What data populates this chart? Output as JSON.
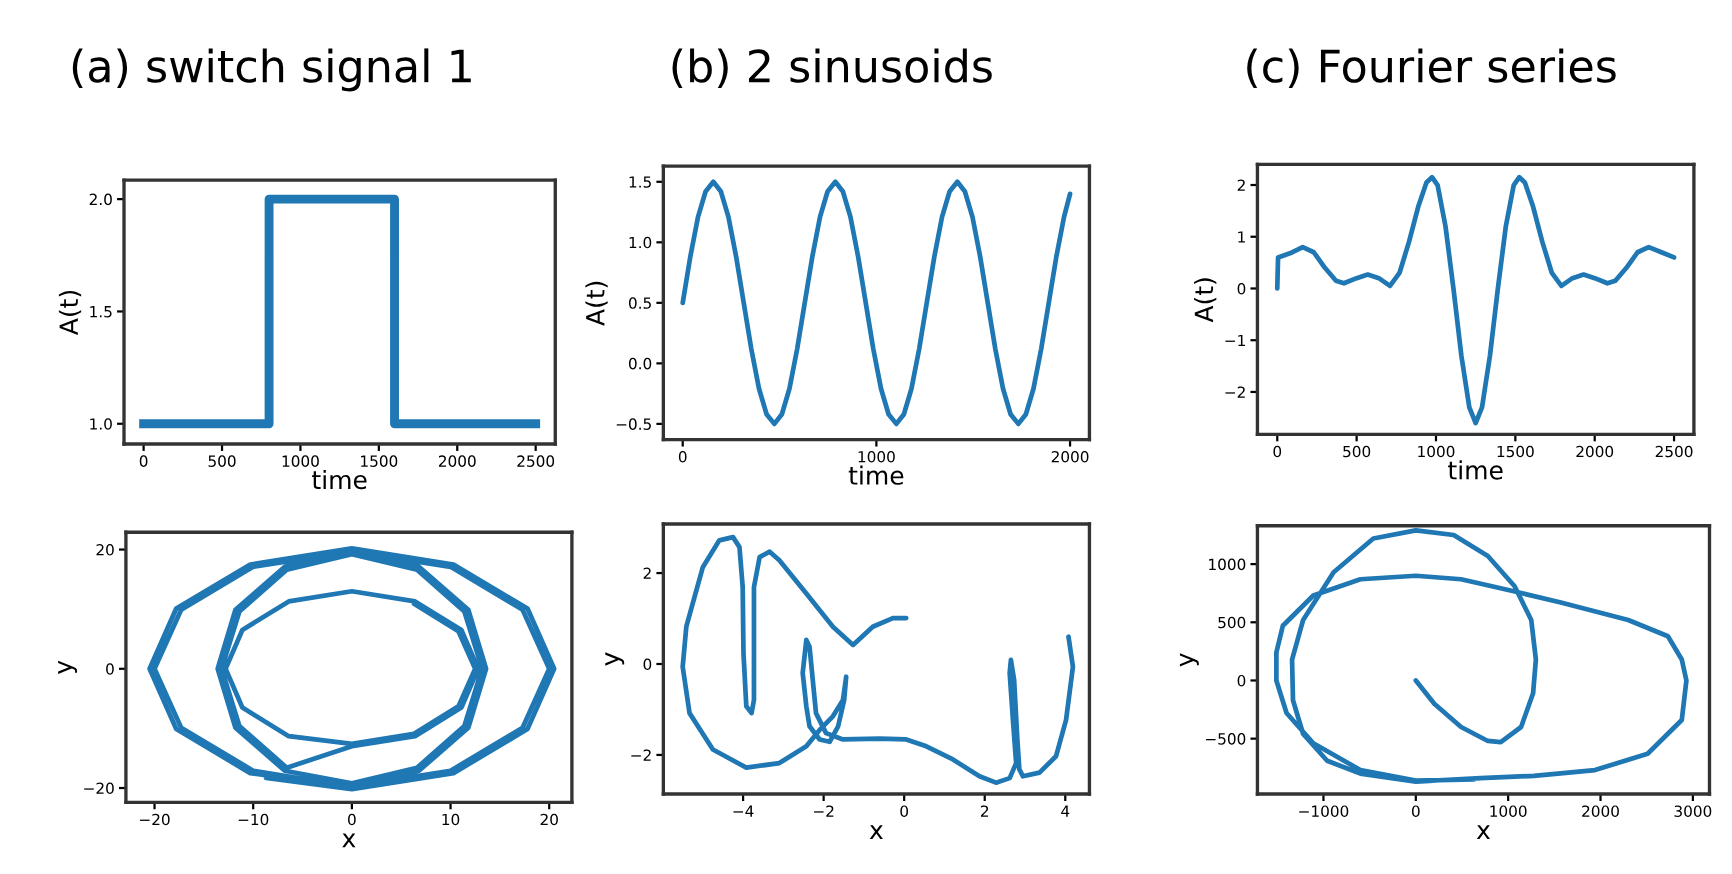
{
  "chart_data": [
    {
      "type": "step",
      "title": "(a) switch signal 1",
      "xlabel": "time",
      "ylabel": "A(t)",
      "xlim": [
        -125,
        2625
      ],
      "ylim": [
        0.91,
        2.085
      ],
      "xticks": [
        0,
        500,
        1000,
        1500,
        2000,
        2500
      ],
      "yticks": [
        {
          "value": 1.0,
          "label": "1.0"
        },
        {
          "value": 1.5,
          "label": "1.5"
        },
        {
          "value": 2.0,
          "label": "2.0"
        }
      ],
      "series": [
        {
          "color": "#1f77b4",
          "x": [
            0,
            800,
            1600,
            2500
          ],
          "values": [
            1.0,
            2.0,
            1.0,
            1.0
          ]
        }
      ]
    },
    {
      "type": "line",
      "title": "(b) 2 sinusoids",
      "xlabel": "time",
      "ylabel": "A(t)",
      "xlim": [
        -100,
        2100
      ],
      "ylim": [
        -0.63,
        1.63
      ],
      "xticks": [
        0,
        1000,
        2000
      ],
      "yticks": [
        {
          "value": -0.5,
          "label": "−0.5"
        },
        {
          "value": 0.0,
          "label": "0.0"
        },
        {
          "value": 0.5,
          "label": "0.5"
        },
        {
          "value": 1.0,
          "label": "1.0"
        },
        {
          "value": 1.5,
          "label": "1.5"
        }
      ],
      "series": [
        {
          "color": "#1f77b4",
          "x": [
            0,
            39,
            79,
            118,
            158,
            197,
            236,
            276,
            315,
            354,
            394,
            433,
            473,
            512,
            551,
            591,
            630,
            669,
            709,
            748,
            788,
            827,
            866,
            906,
            945,
            984,
            1024,
            1063,
            1103,
            1142,
            1181,
            1221,
            1260,
            1299,
            1339,
            1378,
            1418,
            1457,
            1496,
            1536,
            1575,
            1614,
            1654,
            1693,
            1733,
            1772,
            1811,
            1851,
            1890,
            1929,
            1969,
            2000
          ],
          "values": [
            0.5,
            0.88,
            1.21,
            1.42,
            1.5,
            1.42,
            1.21,
            0.88,
            0.5,
            0.12,
            -0.21,
            -0.42,
            -0.5,
            -0.42,
            -0.21,
            0.12,
            0.5,
            0.88,
            1.21,
            1.42,
            1.5,
            1.42,
            1.21,
            0.88,
            0.5,
            0.12,
            -0.21,
            -0.42,
            -0.5,
            -0.42,
            -0.21,
            0.12,
            0.5,
            0.88,
            1.21,
            1.42,
            1.5,
            1.42,
            1.21,
            0.88,
            0.5,
            0.12,
            -0.21,
            -0.42,
            -0.5,
            -0.42,
            -0.21,
            0.12,
            0.5,
            0.88,
            1.21,
            1.4
          ]
        }
      ]
    },
    {
      "type": "line",
      "title": "(c) Fourier series",
      "xlabel": "time",
      "ylabel": "A(t)",
      "xlim": [
        -125,
        2625
      ],
      "ylim": [
        -2.82,
        2.4
      ],
      "xticks": [
        0,
        500,
        1000,
        1500,
        2000,
        2500
      ],
      "yticks": [
        {
          "value": -2,
          "label": "−2"
        },
        {
          "value": -1,
          "label": "−1"
        },
        0,
        1,
        2
      ],
      "series": [
        {
          "color": "#1f77b4",
          "x": [
            0,
            5,
            80,
            160,
            230,
            300,
            370,
            420,
            500,
            570,
            640,
            710,
            770,
            830,
            890,
            940,
            975,
            1010,
            1060,
            1110,
            1160,
            1210,
            1250,
            1290,
            1340,
            1390,
            1440,
            1490,
            1525,
            1560,
            1610,
            1670,
            1730,
            1790,
            1860,
            1930,
            2000,
            2080,
            2130,
            2200,
            2270,
            2340,
            2420,
            2500
          ],
          "values": [
            0.0,
            0.6,
            0.68,
            0.8,
            0.7,
            0.4,
            0.15,
            0.1,
            0.2,
            0.27,
            0.2,
            0.05,
            0.3,
            0.9,
            1.6,
            2.05,
            2.15,
            2.0,
            1.2,
            0.0,
            -1.3,
            -2.3,
            -2.6,
            -2.3,
            -1.3,
            0.0,
            1.2,
            2.0,
            2.15,
            2.05,
            1.6,
            0.9,
            0.3,
            0.05,
            0.2,
            0.27,
            0.2,
            0.1,
            0.15,
            0.4,
            0.7,
            0.8,
            0.7,
            0.6
          ]
        }
      ]
    },
    {
      "type": "line",
      "xlabel": "x",
      "ylabel": "y",
      "xlim": [
        -22.9,
        22.3
      ],
      "ylim": [
        -22.4,
        22.9
      ],
      "xticks": [
        {
          "value": -20,
          "label": "−20"
        },
        {
          "value": -10,
          "label": "−10"
        },
        0,
        10,
        20
      ],
      "yticks": [
        {
          "value": -20,
          "label": "−20"
        },
        0,
        20
      ],
      "series": [
        {
          "color": "#1f77b4",
          "x": [
            -8.7,
            0,
            10.3,
            17.8,
            20.5,
            17.8,
            10.3,
            0,
            -10.3,
            -17.8,
            -20.5,
            -17.8,
            -10.3,
            0,
            10,
            17.3,
            20,
            17.3,
            10,
            0,
            -10,
            -17.3,
            -20,
            -17.3,
            -10,
            0,
            6.8,
            11.8,
            13.6,
            11.8,
            6.8,
            0,
            -6.8,
            -11.8,
            -13.6,
            -11.8,
            -6.8,
            0,
            6.6,
            11.4,
            13.2,
            11.4,
            6.6,
            0,
            -6.6,
            -11.4,
            -13.2,
            -11.4,
            -6.6,
            0,
            6.4,
            11.1,
            12.8,
            11.1,
            6.4,
            0,
            -6.4,
            -11.1,
            -12.8,
            -11.1,
            -6.4,
            0,
            6.3,
            10.8,
            12.5,
            10.8,
            6.3
          ],
          "values": [
            -18.3,
            -20.2,
            -17.5,
            -10.1,
            0,
            10.1,
            17.5,
            20.2,
            17.5,
            10.1,
            0,
            -10.1,
            -17.5,
            -19.7,
            -17.1,
            -9.9,
            0,
            9.9,
            17.1,
            19.7,
            17.1,
            9.9,
            0,
            -9.9,
            -17.1,
            -19.8,
            -17.1,
            -9.9,
            0,
            9.9,
            17.1,
            19.8,
            17.1,
            9.9,
            0,
            -9.9,
            -17.1,
            -19.2,
            -16.6,
            -9.6,
            0,
            9.6,
            16.6,
            19.2,
            16.6,
            9.6,
            0,
            -9.6,
            -16.6,
            -13,
            -11.3,
            -6.5,
            0,
            6.5,
            11.3,
            13,
            11.3,
            6.5,
            0,
            -6.5,
            -11.3,
            -12.6,
            -10.9,
            -6.3,
            0,
            6.3,
            10.9
          ]
        }
      ]
    },
    {
      "type": "line",
      "xlabel": "x",
      "ylabel": "y",
      "xlim": [
        -5.98,
        4.6
      ],
      "ylim": [
        -2.86,
        3.08
      ],
      "xticks": [
        {
          "value": -4,
          "label": "−4"
        },
        {
          "value": -2,
          "label": "−2"
        },
        0,
        2,
        4
      ],
      "yticks": [
        {
          "value": -2,
          "label": "−2"
        },
        0,
        2
      ],
      "series": [
        {
          "color": "#1f77b4",
          "x": [
            0.05,
            -0.28,
            -0.78,
            -1.27,
            -1.77,
            -2.43,
            -3.1,
            -3.34,
            -3.59,
            -3.73,
            -3.73,
            -3.73,
            -3.79,
            -3.92,
            -3.99,
            -4.01,
            -4.09,
            -4.25,
            -4.59,
            -5.0,
            -5.41,
            -5.5,
            -5.33,
            -4.75,
            -3.92,
            -3.1,
            -2.43,
            -2.1,
            -1.77,
            -1.52,
            -1.44,
            -1.49,
            -1.64,
            -1.85,
            -2.1,
            -2.35,
            -2.43,
            -2.52,
            -2.43,
            -2.35,
            -2.27,
            -2.19,
            -1.94,
            -1.52,
            -0.61,
            0.05,
            0.55,
            1.21,
            1.87,
            2.28,
            2.62,
            2.78,
            2.7,
            2.62,
            2.65,
            2.73,
            2.81,
            2.86,
            2.95,
            3.36,
            3.77,
            4.02,
            4.19,
            4.08
          ],
          "values": [
            1.01,
            1.01,
            0.82,
            0.42,
            0.82,
            1.55,
            2.28,
            2.47,
            2.35,
            1.69,
            0.23,
            -0.79,
            -1.08,
            -0.93,
            0.23,
            1.69,
            2.57,
            2.79,
            2.72,
            2.13,
            0.82,
            -0.06,
            -1.08,
            -1.88,
            -2.28,
            -2.18,
            -1.81,
            -1.45,
            -1.15,
            -0.79,
            -0.28,
            -0.79,
            -1.37,
            -1.71,
            -1.66,
            -1.37,
            -0.93,
            -0.2,
            0.53,
            0.38,
            -0.35,
            -1.08,
            -1.52,
            -1.66,
            -1.64,
            -1.66,
            -1.81,
            -2.1,
            -2.47,
            -2.61,
            -2.51,
            -2.18,
            -1.23,
            -0.2,
            0.09,
            -0.35,
            -1.66,
            -2.32,
            -2.47,
            -2.39,
            -2.03,
            -1.23,
            -0.06,
            0.6
          ]
        }
      ]
    },
    {
      "type": "line",
      "xlabel": "x",
      "ylabel": "y",
      "xlim": [
        -1715,
        3180
      ],
      "ylim": [
        -976,
        1330
      ],
      "xticks": [
        {
          "value": -1000,
          "label": "−1000"
        },
        0,
        1000,
        2000,
        3000
      ],
      "yticks": [
        {
          "value": -500,
          "label": "−500"
        },
        0,
        500,
        1000
      ],
      "series": [
        {
          "color": "#1f77b4",
          "x": [
            0,
            200,
            490,
            780,
            920,
            1140,
            1270,
            1300,
            1250,
            1070,
            780,
            410,
            0,
            -460,
            -890,
            -1220,
            -1340,
            -1330,
            -1220,
            -960,
            -600,
            0,
            700,
            1280,
            1940,
            2510,
            2880,
            2930,
            2880,
            2730,
            2300,
            1570,
            990,
            490,
            0,
            -600,
            -1110,
            -1440,
            -1510,
            -1510,
            -1400,
            -1110,
            -600,
            0,
            630
          ],
          "values": [
            0,
            -200,
            -400,
            -520,
            -530,
            -400,
            -110,
            180,
            520,
            810,
            1070,
            1250,
            1290,
            1220,
            930,
            520,
            180,
            -170,
            -460,
            -690,
            -800,
            -870,
            -840,
            -820,
            -770,
            -630,
            -340,
            0,
            180,
            380,
            520,
            670,
            780,
            870,
            900,
            870,
            730,
            470,
            240,
            0,
            -280,
            -540,
            -770,
            -860,
            -850
          ]
        }
      ]
    }
  ]
}
